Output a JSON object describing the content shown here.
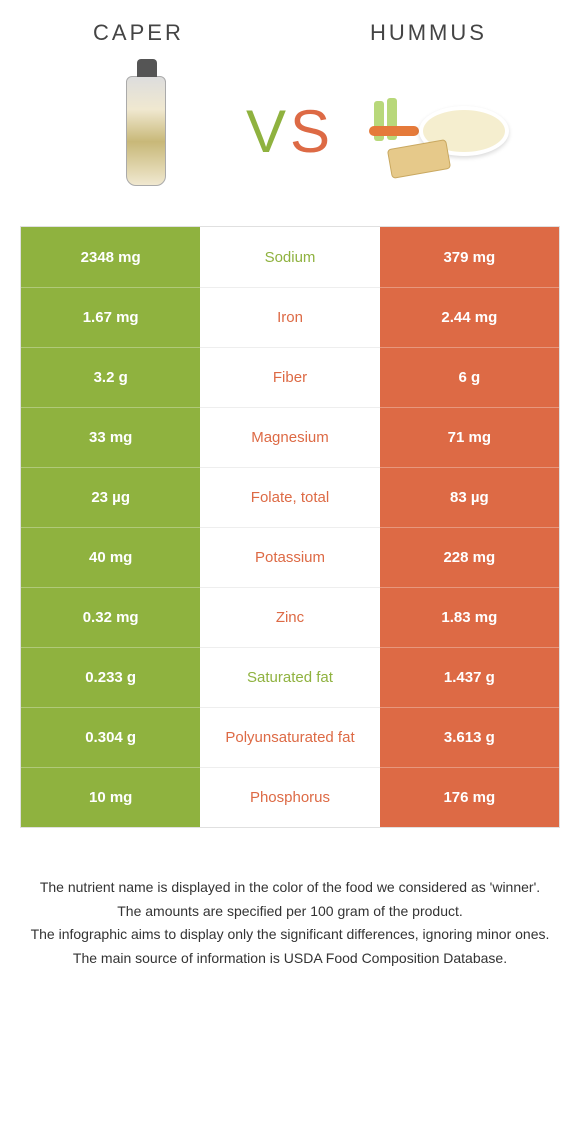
{
  "colors": {
    "left_bg": "#8fb23f",
    "right_bg": "#dd6a45",
    "left_text": "#8fb23f",
    "right_text": "#dd6a45",
    "neutral_text": "#666666"
  },
  "header": {
    "left_title": "Caper",
    "right_title": "Hummus",
    "vs_v": "V",
    "vs_s": "S"
  },
  "rows": [
    {
      "left": "2348 mg",
      "label": "Sodium",
      "right": "379 mg",
      "winner": "left"
    },
    {
      "left": "1.67 mg",
      "label": "Iron",
      "right": "2.44 mg",
      "winner": "right"
    },
    {
      "left": "3.2 g",
      "label": "Fiber",
      "right": "6 g",
      "winner": "right"
    },
    {
      "left": "33 mg",
      "label": "Magnesium",
      "right": "71 mg",
      "winner": "right"
    },
    {
      "left": "23 µg",
      "label": "Folate, total",
      "right": "83 µg",
      "winner": "right"
    },
    {
      "left": "40 mg",
      "label": "Potassium",
      "right": "228 mg",
      "winner": "right"
    },
    {
      "left": "0.32 mg",
      "label": "Zinc",
      "right": "1.83 mg",
      "winner": "right"
    },
    {
      "left": "0.233 g",
      "label": "Saturated fat",
      "right": "1.437 g",
      "winner": "left"
    },
    {
      "left": "0.304 g",
      "label": "Polyunsaturated fat",
      "right": "3.613 g",
      "winner": "right"
    },
    {
      "left": "10 mg",
      "label": "Phosphorus",
      "right": "176 mg",
      "winner": "right"
    }
  ],
  "footnote": {
    "line1": "The nutrient name is displayed in the color of the food we considered as 'winner'.",
    "line2": "The amounts are specified per 100 gram of the product.",
    "line3": "The infographic aims to display only the significant differences, ignoring minor ones.",
    "line4": "The main source of information is USDA Food Composition Database."
  }
}
